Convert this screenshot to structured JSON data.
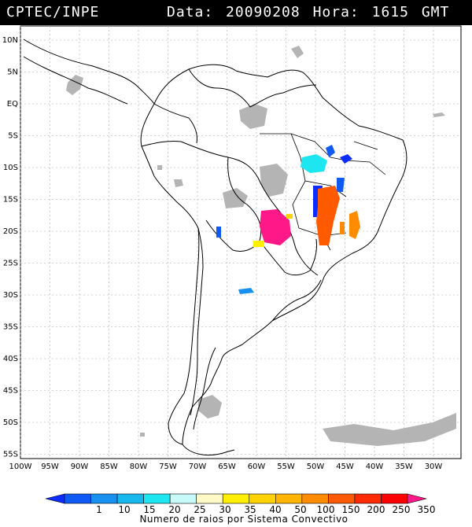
{
  "header": {
    "source": "CPTEC/INPE",
    "data_label": "Data:",
    "date": "20090208",
    "hora_label": "Hora:",
    "time": "1615",
    "timezone": "GMT"
  },
  "map": {
    "lat_labels": [
      "10N",
      "5N",
      "EQ",
      "5S",
      "10S",
      "15S",
      "20S",
      "25S",
      "30S",
      "35S",
      "40S",
      "45S",
      "50S",
      "55S"
    ],
    "lon_labels": [
      "100W",
      "95W",
      "90W",
      "85W",
      "80W",
      "75W",
      "70W",
      "65W",
      "60W",
      "55W",
      "50W",
      "45W",
      "40W",
      "35W",
      "30W"
    ]
  },
  "colorbar": {
    "ticks": [
      "1",
      "10",
      "15",
      "20",
      "25",
      "30",
      "35",
      "40",
      "50",
      "100",
      "150",
      "200",
      "250",
      "350"
    ],
    "colors": [
      "#0a2cff",
      "#0f5af5",
      "#1890f0",
      "#18b8ee",
      "#1ee6f0",
      "#c8fafa",
      "#fffac8",
      "#fff000",
      "#ffd200",
      "#ffb400",
      "#ff8c00",
      "#ff5a00",
      "#ff2a00",
      "#ff0000",
      "#ff1888"
    ],
    "title": "Numero de raios por Sistema Convectivo"
  }
}
